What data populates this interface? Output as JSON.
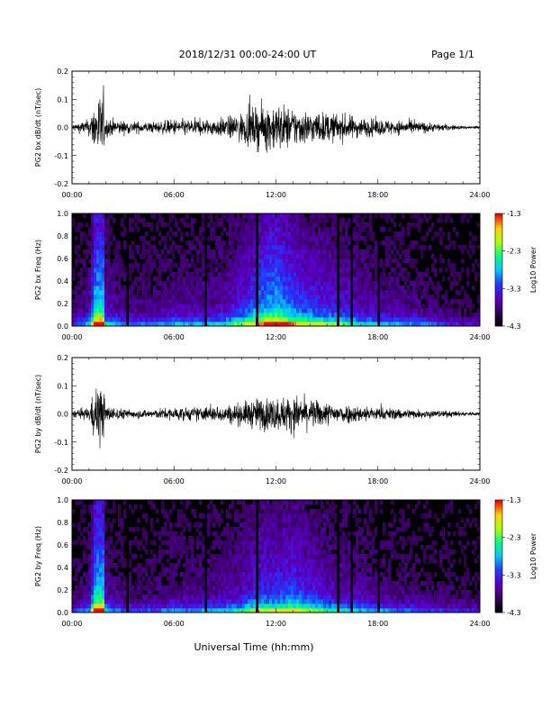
{
  "header": {
    "title": "2018/12/31  00:00-24:00 UT",
    "page": "Page 1/1"
  },
  "footer": {
    "xlabel": "Universal Time (hh:mm)"
  },
  "colors": {
    "colormap": [
      "#000000",
      "#3a0060",
      "#5a00c8",
      "#1e3cff",
      "#00c8ff",
      "#00ff80",
      "#b0ff00",
      "#ffd000",
      "#ff0000"
    ],
    "trace": "#000000"
  },
  "chart_data": [
    {
      "type": "line",
      "ylabel": "PG2 bx dB/dt (nT/sec)",
      "x_ticks": [
        "00:00",
        "06:00",
        "12:00",
        "18:00",
        "24:00"
      ],
      "y_ticks": [
        "-0.2",
        "-0.1",
        "0.0",
        "0.1",
        "0.2"
      ],
      "xlim_hours": [
        0,
        24
      ],
      "ylim": [
        -0.2,
        0.2
      ],
      "envelope": {
        "hours": [
          0,
          1,
          1.5,
          1.75,
          2,
          3,
          4,
          5,
          6,
          7,
          8,
          9,
          10,
          11,
          12,
          13,
          14,
          15,
          16,
          17,
          18,
          19,
          20,
          21,
          22,
          23,
          24
        ],
        "amplitude": [
          0.02,
          0.05,
          0.2,
          0.2,
          0.06,
          0.04,
          0.035,
          0.035,
          0.05,
          0.05,
          0.05,
          0.06,
          0.09,
          0.13,
          0.15,
          0.12,
          0.1,
          0.09,
          0.08,
          0.06,
          0.05,
          0.045,
          0.04,
          0.03,
          0.02,
          0.01,
          0.01
        ]
      }
    },
    {
      "type": "heatmap",
      "ylabel": "PG2 bx Freq (Hz)",
      "colorbar_label": "Log10 Power",
      "colorbar_ticks": [
        "-1.3",
        "-2.3",
        "-3.3",
        "-4.3"
      ],
      "clim": [
        -4.3,
        -1.3
      ],
      "x_ticks": [
        "00:00",
        "06:00",
        "12:00",
        "18:00",
        "24:00"
      ],
      "y_ticks": [
        "0.0",
        "0.2",
        "0.4",
        "0.6",
        "0.8",
        "1.0"
      ],
      "xlim_hours": [
        0,
        24
      ],
      "ylim": [
        0,
        1
      ]
    },
    {
      "type": "line",
      "ylabel": "PG2 by dB/dt (nT/sec)",
      "x_ticks": [
        "00:00",
        "06:00",
        "12:00",
        "18:00",
        "24:00"
      ],
      "y_ticks": [
        "-0.2",
        "-0.1",
        "0.0",
        "0.1",
        "0.2"
      ],
      "xlim_hours": [
        0,
        24
      ],
      "ylim": [
        -0.2,
        0.2
      ],
      "envelope": {
        "hours": [
          0,
          1,
          1.5,
          1.75,
          2,
          3,
          4,
          5,
          6,
          7,
          8,
          9,
          10,
          11,
          12,
          13,
          14,
          15,
          16,
          17,
          18,
          19,
          20,
          21,
          22,
          23,
          24
        ],
        "amplitude": [
          0.02,
          0.04,
          0.2,
          0.2,
          0.05,
          0.03,
          0.025,
          0.03,
          0.04,
          0.04,
          0.045,
          0.05,
          0.07,
          0.1,
          0.1,
          0.11,
          0.09,
          0.07,
          0.06,
          0.05,
          0.04,
          0.035,
          0.03,
          0.025,
          0.02,
          0.015,
          0.01
        ]
      }
    },
    {
      "type": "heatmap",
      "ylabel": "PG2 by Freq (Hz)",
      "colorbar_label": "Log10 Power",
      "colorbar_ticks": [
        "-1.3",
        "-2.3",
        "-3.3",
        "-4.3"
      ],
      "clim": [
        -4.3,
        -1.3
      ],
      "x_ticks": [
        "00:00",
        "06:00",
        "12:00",
        "18:00",
        "24:00"
      ],
      "y_ticks": [
        "0.0",
        "0.2",
        "0.4",
        "0.6",
        "0.8",
        "1.0"
      ],
      "xlim_hours": [
        0,
        24
      ],
      "ylim": [
        0,
        1
      ]
    }
  ]
}
